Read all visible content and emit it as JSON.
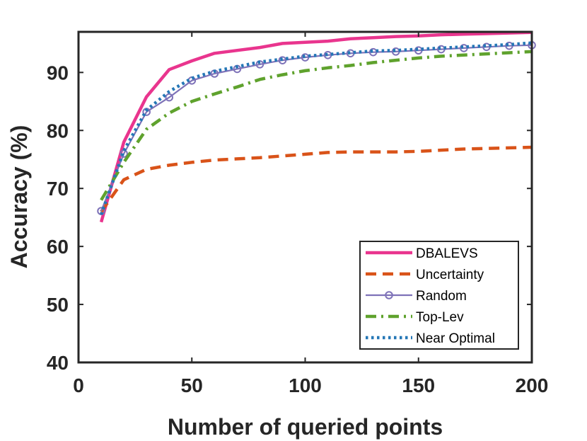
{
  "chart_data": {
    "type": "line",
    "xlabel": "Number of queried points",
    "ylabel": "Accuracy (%)",
    "xlim": [
      0,
      200
    ],
    "ylim": [
      40,
      97
    ],
    "xticks": [
      0,
      50,
      100,
      150,
      200
    ],
    "yticks": [
      40,
      50,
      60,
      70,
      80,
      90
    ],
    "grid": false,
    "legend_position": "bottom-right",
    "series": [
      {
        "name": "DBALEVS",
        "color": "#e9358e",
        "style": "solid",
        "x": [
          10,
          20,
          30,
          40,
          50,
          60,
          70,
          80,
          90,
          100,
          110,
          120,
          130,
          140,
          150,
          160,
          170,
          180,
          190,
          200
        ],
        "y": [
          64.2,
          78,
          85.8,
          90.5,
          92,
          93.3,
          93.8,
          94.3,
          95,
          95.2,
          95.4,
          95.8,
          96,
          96.2,
          96.3,
          96.5,
          96.6,
          96.7,
          96.8,
          96.9
        ]
      },
      {
        "name": "Uncertainty",
        "color": "#d95319",
        "style": "dashed",
        "x": [
          10,
          20,
          30,
          40,
          50,
          60,
          70,
          80,
          90,
          100,
          110,
          120,
          130,
          140,
          150,
          160,
          170,
          180,
          190,
          200
        ],
        "y": [
          66,
          71.5,
          73.3,
          74,
          74.5,
          74.9,
          75.1,
          75.3,
          75.6,
          75.9,
          76.2,
          76.3,
          76.3,
          76.3,
          76.4,
          76.6,
          76.8,
          76.9,
          77,
          77.1
        ]
      },
      {
        "name": "Random",
        "color": "#7e72b8",
        "style": "solid-circle",
        "x": [
          10,
          20,
          30,
          40,
          50,
          60,
          70,
          80,
          90,
          100,
          110,
          120,
          130,
          140,
          150,
          160,
          170,
          180,
          190,
          200
        ],
        "y": [
          66.1,
          76,
          83.2,
          85.7,
          88.6,
          89.8,
          90.6,
          91.4,
          92.1,
          92.6,
          93,
          93.3,
          93.5,
          93.6,
          93.8,
          94,
          94.2,
          94.4,
          94.6,
          94.7
        ]
      },
      {
        "name": "Top-Lev",
        "color": "#5fa22d",
        "style": "dashdot",
        "x": [
          10,
          20,
          30,
          40,
          50,
          60,
          70,
          80,
          90,
          100,
          110,
          120,
          130,
          140,
          150,
          160,
          170,
          180,
          190,
          200
        ],
        "y": [
          68,
          74.5,
          80.2,
          83,
          85,
          86.3,
          87.5,
          88.8,
          89.6,
          90.3,
          90.8,
          91.2,
          91.7,
          92.1,
          92.5,
          92.8,
          93,
          93.2,
          93.4,
          93.6
        ]
      },
      {
        "name": "Near Optimal",
        "color": "#2577b6",
        "style": "dotted",
        "x": [
          10,
          20,
          30,
          40,
          50,
          60,
          70,
          80,
          90,
          100,
          110,
          120,
          130,
          140,
          150,
          160,
          170,
          180,
          190,
          200
        ],
        "y": [
          65.5,
          76.5,
          83.5,
          86.7,
          89,
          90.2,
          91,
          91.8,
          92.3,
          92.8,
          93.1,
          93.4,
          93.7,
          93.8,
          94,
          94.2,
          94.4,
          94.6,
          94.8,
          95.1
        ]
      }
    ]
  }
}
